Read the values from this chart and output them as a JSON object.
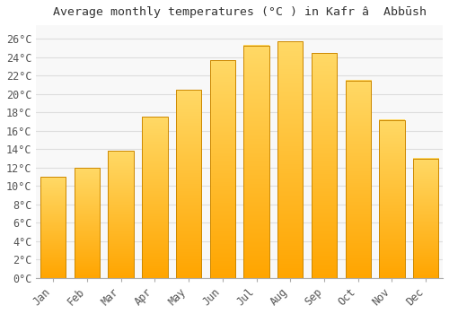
{
  "title": "Average monthly temperatures (°C ) in Kafr â  Abbūsh",
  "months": [
    "Jan",
    "Feb",
    "Mar",
    "Apr",
    "May",
    "Jun",
    "Jul",
    "Aug",
    "Sep",
    "Oct",
    "Nov",
    "Dec"
  ],
  "values": [
    11.0,
    12.0,
    13.8,
    17.5,
    20.5,
    23.7,
    25.3,
    25.7,
    24.5,
    21.5,
    17.2,
    13.0
  ],
  "bar_color_bottom": "#FFA500",
  "bar_color_top": "#FFD966",
  "bar_edge_color": "#CC8800",
  "background_color": "#FFFFFF",
  "plot_bg_color": "#F8F8F8",
  "grid_color": "#DDDDDD",
  "ytick_labels": [
    "0°C",
    "2°C",
    "4°C",
    "6°C",
    "8°C",
    "10°C",
    "12°C",
    "14°C",
    "16°C",
    "18°C",
    "20°C",
    "22°C",
    "24°C",
    "26°C"
  ],
  "ytick_values": [
    0,
    2,
    4,
    6,
    8,
    10,
    12,
    14,
    16,
    18,
    20,
    22,
    24,
    26
  ],
  "ylim": [
    0,
    27.5
  ],
  "font_family": "monospace",
  "title_fontsize": 9.5,
  "tick_fontsize": 8.5,
  "bar_width": 0.75
}
